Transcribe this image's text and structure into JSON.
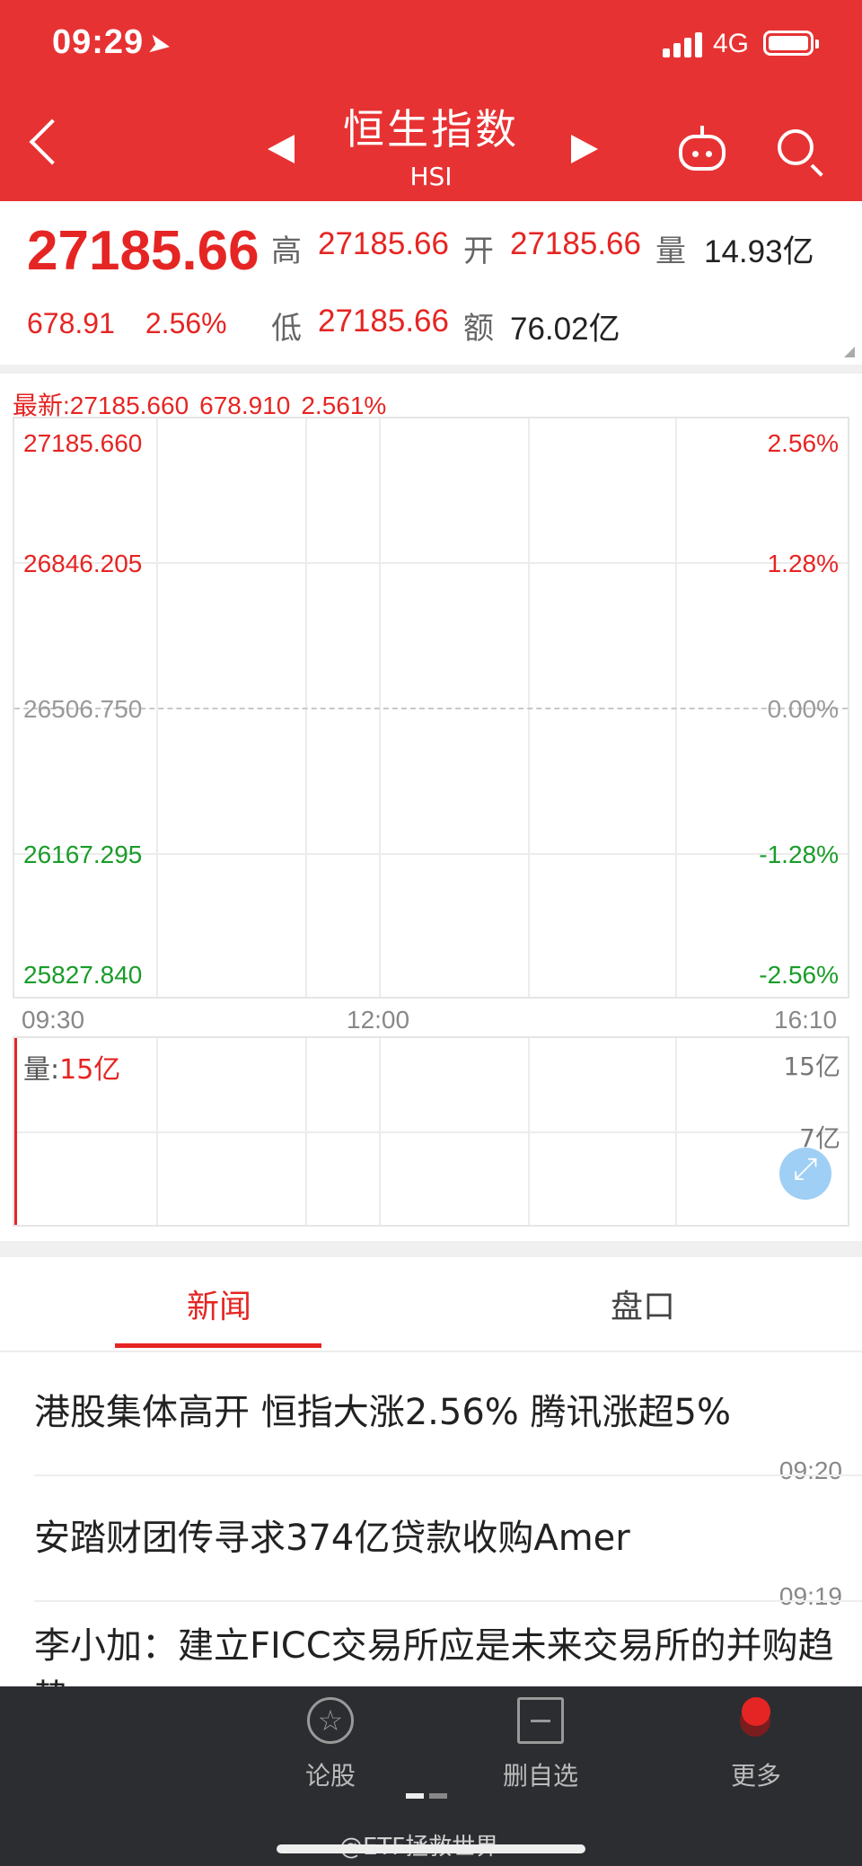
{
  "status": {
    "time": "09:29",
    "network": "4G"
  },
  "header": {
    "title": "恒生指数",
    "subtitle": "HSI"
  },
  "quote": {
    "price": "27185.66",
    "change": "678.91",
    "change_pct": "2.56%",
    "high_label": "高",
    "high": "27185.66",
    "open_label": "开",
    "open": "27185.66",
    "volume_label": "量",
    "volume": "14.93亿",
    "low_label": "低",
    "low": "27185.66",
    "amount_label": "额",
    "amount": "76.02亿"
  },
  "chart": {
    "latest_label": "最新:27185.660",
    "latest_change": "678.910",
    "latest_pct": "2.561%",
    "y_left": [
      "27185.660",
      "26846.205",
      "26506.750",
      "26167.295",
      "25827.840"
    ],
    "y_right": [
      "2.56%",
      "1.28%",
      "0.00%",
      "-1.28%",
      "-2.56%"
    ],
    "x_labels": [
      "09:30",
      "12:00",
      "16:10"
    ],
    "volume_label": "量:",
    "volume_value": "15亿",
    "volume_axis": [
      "15亿",
      "7亿"
    ],
    "colors": {
      "up": "#e52523",
      "down": "#1a9c2a",
      "flat": "#999999"
    }
  },
  "tabs": [
    {
      "label": "新闻"
    },
    {
      "label": "盘口"
    }
  ],
  "news": [
    {
      "title": "港股集体高开 恒指大涨2.56% 腾讯涨超5%",
      "time": "09:20"
    },
    {
      "title": "安踏财团传寻求374亿贷款收购Amer",
      "time": "09:19"
    },
    {
      "title": "李小加：建立FICC交易所应是未来交易所的并购趋势",
      "time": ""
    }
  ],
  "bottom_bar": [
    {
      "label": "论股",
      "icon": "forum-icon"
    },
    {
      "label": "删自选",
      "icon": "remove-watchlist-icon"
    },
    {
      "label": "更多",
      "icon": "more-icon"
    }
  ],
  "watermark": "@ETF拯救世界"
}
